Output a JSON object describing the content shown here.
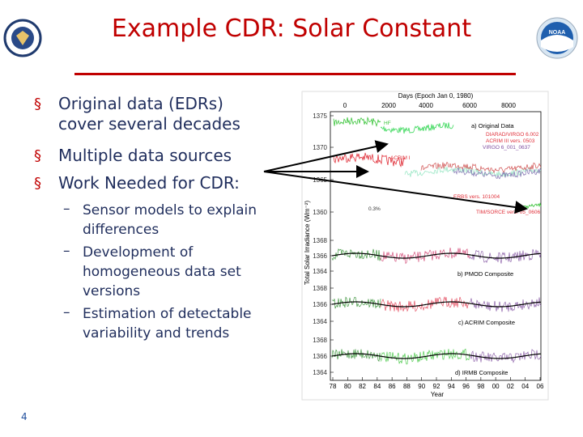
{
  "header": {
    "title": "Example CDR:  Solar Constant",
    "logo_text": "NOAA"
  },
  "bullets": [
    {
      "lines": [
        "Original data (EDRs)",
        "cover several decades"
      ]
    },
    {
      "lines": [
        "Multiple data sources"
      ]
    },
    {
      "lines": [
        "Work Needed for CDR:"
      ]
    }
  ],
  "sub_bullets": [
    {
      "lines": [
        "Sensor models to explain",
        "differences"
      ]
    },
    {
      "lines": [
        "Development of",
        "homogeneous data set",
        "versions"
      ]
    },
    {
      "lines": [
        "Estimation of detectable",
        "variability and trends"
      ]
    }
  ],
  "figure": {
    "top_axis_title": "Days (Epoch Jan 0, 1980)",
    "top_ticks": [
      "0",
      "2000",
      "4000",
      "6000",
      "8000"
    ],
    "y_axis_title": "Total Solar Irradiance (Wm⁻²)",
    "bottom_axis_title": "Year",
    "bottom_ticks": [
      "78",
      "80",
      "82",
      "84",
      "86",
      "88",
      "90",
      "92",
      "94",
      "96",
      "98",
      "00",
      "02",
      "04",
      "06"
    ],
    "panels": [
      {
        "label": "a) Original Data",
        "y_ticks": [
          "1375",
          "1370",
          "1365",
          "1360"
        ]
      },
      {
        "label": "b) PMOD Composite",
        "y_ticks": [
          "1368",
          "1366",
          "1364"
        ]
      },
      {
        "label": "c) ACRIM Composite",
        "y_ticks": [
          "1368",
          "1366",
          "1364"
        ]
      },
      {
        "label": "d) IRMB Composite",
        "y_ticks": [
          "1368",
          "1366",
          "1364"
        ]
      }
    ],
    "annotations": [
      "HF",
      "ACRIM I",
      "DIARAD/VIRGO 6.002",
      "ACRIM III vers. 0503",
      "VIRGO 6_001_0637",
      "ERBS vers. 101004",
      "0.3%",
      "TIM/SORCE vers. 05_0606"
    ]
  },
  "page_number": "4"
}
